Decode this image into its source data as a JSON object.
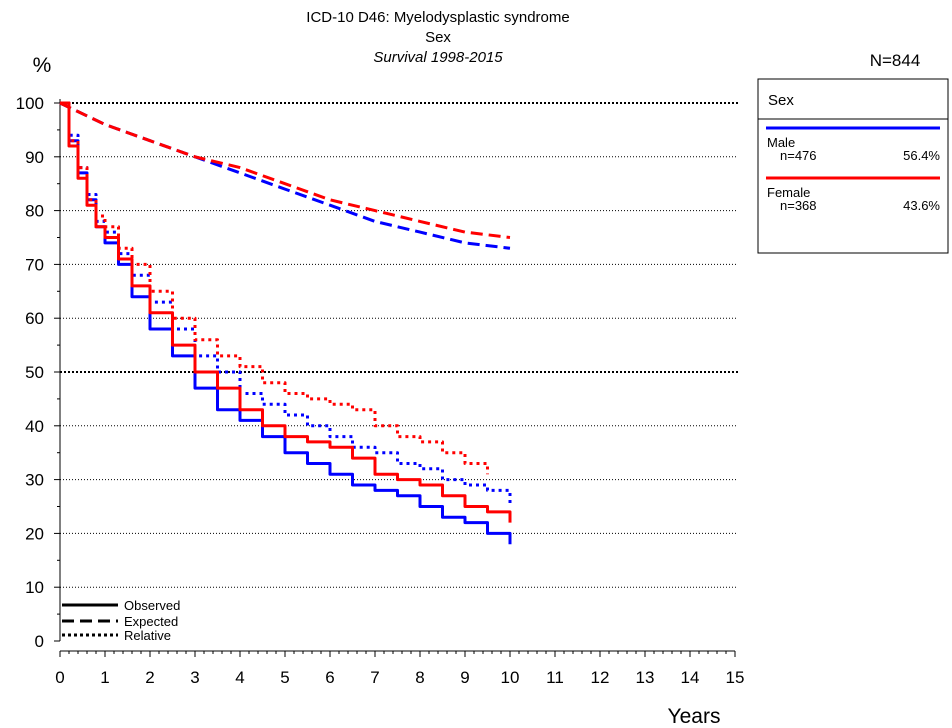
{
  "chart_data": {
    "type": "line",
    "title": "ICD-10 D46: Myelodysplastic syndrome",
    "subtitle": "Sex",
    "subtitle2": "Survival 1998-2015",
    "n_total": "N=844",
    "ylabel": "%",
    "xlabel": "Years",
    "xlim": [
      0,
      15
    ],
    "ylim": [
      0,
      100
    ],
    "x_ticks": [
      "0",
      "1",
      "2",
      "3",
      "4",
      "5",
      "6",
      "7",
      "8",
      "9",
      "10",
      "11",
      "12",
      "13",
      "14",
      "15"
    ],
    "y_ticks": [
      "0",
      "10",
      "20",
      "30",
      "40",
      "50",
      "60",
      "70",
      "80",
      "90",
      "100"
    ],
    "grid": "horizontal dotted",
    "line_style_legend": {
      "position": "bottom-left",
      "entries": [
        "Observed",
        "Expected",
        "Relative"
      ]
    },
    "group_legend": {
      "position": "right",
      "title": "Sex",
      "entries": [
        {
          "name": "Male",
          "n": "n=476",
          "pct": "56.4%",
          "color": "#0000ff"
        },
        {
          "name": "Female",
          "n": "n=368",
          "pct": "43.6%",
          "color": "#ff0000"
        }
      ]
    },
    "series": [
      {
        "name": "Male",
        "kind": "observed",
        "color": "#0000ff",
        "x": [
          0,
          0.2,
          0.4,
          0.6,
          0.8,
          1,
          1.3,
          1.6,
          2,
          2.5,
          3,
          3.5,
          4,
          4.5,
          5,
          5.5,
          6,
          6.5,
          7,
          7.5,
          8,
          8.5,
          9,
          9.5,
          10
        ],
        "y": [
          100,
          93,
          87,
          82,
          77,
          74,
          70,
          64,
          58,
          53,
          47,
          43,
          41,
          38,
          35,
          33,
          31,
          29,
          28,
          27,
          25,
          23,
          22,
          20,
          18
        ]
      },
      {
        "name": "Male",
        "kind": "expected",
        "color": "#0000ff",
        "x": [
          0,
          1,
          2,
          3,
          4,
          5,
          6,
          7,
          8,
          9,
          10
        ],
        "y": [
          100,
          96,
          93,
          90,
          87,
          84,
          81,
          78,
          76,
          74,
          73
        ]
      },
      {
        "name": "Male",
        "kind": "relative",
        "color": "#0000ff",
        "x": [
          0,
          0.2,
          0.4,
          0.6,
          0.8,
          1,
          1.3,
          1.6,
          2,
          2.5,
          3,
          3.5,
          4,
          4.5,
          5,
          5.5,
          6,
          6.5,
          7,
          7.5,
          8,
          8.5,
          9,
          9.5,
          10
        ],
        "y": [
          100,
          94,
          88,
          83,
          78,
          76,
          72,
          68,
          63,
          58,
          53,
          50,
          46,
          44,
          42,
          40,
          38,
          36,
          35,
          33,
          32,
          30,
          29,
          28,
          25
        ]
      },
      {
        "name": "Female",
        "kind": "observed",
        "color": "#ff0000",
        "x": [
          0,
          0.2,
          0.4,
          0.6,
          0.8,
          1,
          1.3,
          1.6,
          2,
          2.5,
          3,
          3.5,
          4,
          4.5,
          5,
          5.5,
          6,
          6.5,
          7,
          7.5,
          8,
          8.5,
          9,
          9.5,
          10
        ],
        "y": [
          100,
          92,
          86,
          81,
          77,
          75,
          71,
          66,
          61,
          55,
          50,
          47,
          43,
          40,
          38,
          37,
          36,
          34,
          31,
          30,
          29,
          27,
          25,
          24,
          22
        ]
      },
      {
        "name": "Female",
        "kind": "expected",
        "color": "#ff0000",
        "x": [
          0,
          1,
          2,
          3,
          4,
          5,
          6,
          7,
          8,
          9,
          10
        ],
        "y": [
          100,
          96,
          93,
          90,
          88,
          85,
          82,
          80,
          78,
          76,
          75
        ]
      },
      {
        "name": "Female",
        "kind": "relative",
        "color": "#ff0000",
        "x": [
          0,
          0.2,
          0.4,
          0.6,
          0.8,
          1,
          1.3,
          1.6,
          2,
          2.5,
          3,
          3.5,
          4,
          4.5,
          5,
          5.5,
          6,
          6.5,
          7,
          7.5,
          8,
          8.5,
          9,
          9.5
        ],
        "y": [
          100,
          93,
          88,
          82,
          79,
          77,
          73,
          70,
          65,
          60,
          56,
          53,
          51,
          48,
          46,
          45,
          44,
          43,
          40,
          38,
          37,
          35,
          33,
          31
        ]
      }
    ]
  }
}
